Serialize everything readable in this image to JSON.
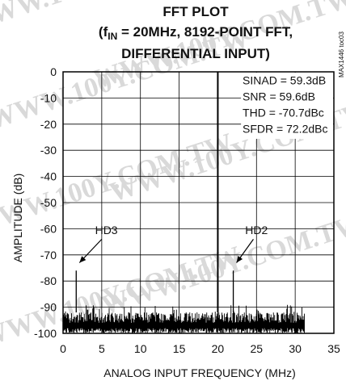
{
  "chart_data": {
    "type": "line",
    "title_line1": "FFT PLOT",
    "title_line2_pre": "(f",
    "title_line2_sub": "IN",
    "title_line2_post": " = 20MHz, 8192-POINT FFT,",
    "title_line3": "DIFFERENTIAL INPUT)",
    "xlabel": "ANALOG INPUT FREQUENCY (MHz)",
    "ylabel": "AMPLITUDE (dB)",
    "xlim": [
      0,
      35
    ],
    "ylim": [
      -100,
      0
    ],
    "xticks": [
      "0",
      "5",
      "10",
      "15",
      "20",
      "25",
      "30",
      "35"
    ],
    "yticks": [
      "0",
      "-10",
      "-20",
      "-30",
      "-40",
      "-50",
      "-60",
      "-70",
      "-80",
      "-90",
      "-100"
    ],
    "grid": true,
    "stats": [
      "SINAD = 59.3dB",
      "SNR = 59.6dB",
      "THD = -70.7dBc",
      "SFDR = 72.2dBc"
    ],
    "doc_code": "MAX1446 toc03",
    "noise_floor_db": [
      -92,
      -100
    ],
    "noise_end_mhz": 31.2,
    "spurs": [
      {
        "x": 20.0,
        "y": 0,
        "label": ""
      },
      {
        "x": 20.0,
        "y": -40,
        "label": ""
      },
      {
        "x": 1.7,
        "y": -76,
        "label": "HD3"
      },
      {
        "x": 22.0,
        "y": -76,
        "label": "HD2"
      }
    ],
    "annotations": [
      {
        "text": "HD3",
        "x": 1.7,
        "y": -76
      },
      {
        "text": "HD2",
        "x": 22.0,
        "y": -76
      }
    ]
  },
  "watermark": "WWW.100Y.COM.TW"
}
